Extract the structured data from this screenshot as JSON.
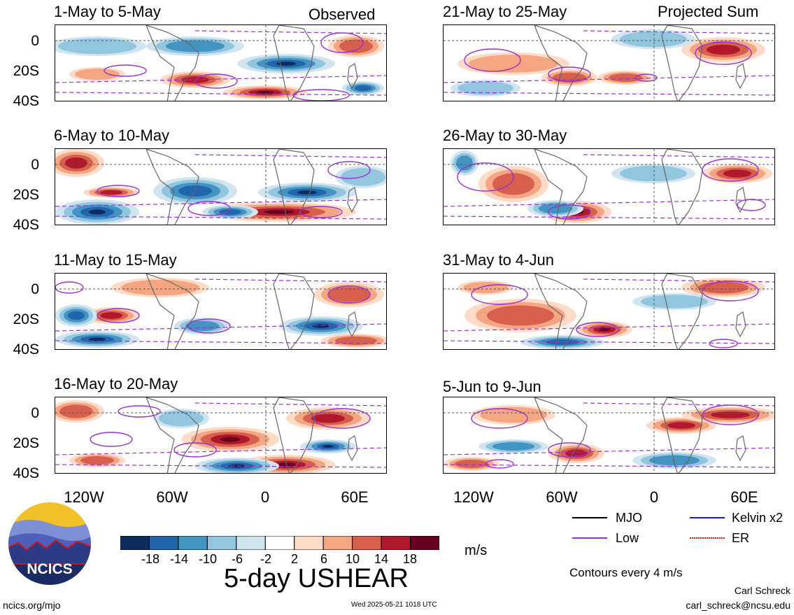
{
  "panels": [
    {
      "id": "p1",
      "title": "1-May to 5-May",
      "tag": "Observed"
    },
    {
      "id": "p2",
      "title": "6-May to 10-May",
      "tag": ""
    },
    {
      "id": "p3",
      "title": "11-May to 15-May",
      "tag": ""
    },
    {
      "id": "p4",
      "title": "16-May to 20-May",
      "tag": ""
    },
    {
      "id": "p5",
      "title": "21-May to 25-May",
      "tag": "Projected Sum"
    },
    {
      "id": "p6",
      "title": "26-May to 30-May",
      "tag": ""
    },
    {
      "id": "p7",
      "title": "31-May to 4-Jun",
      "tag": ""
    },
    {
      "id": "p8",
      "title": "5-Jun to 9-Jun",
      "tag": ""
    }
  ],
  "lat_labels": [
    "0",
    "20S",
    "40S"
  ],
  "lon_labels": [
    "120W",
    "60W",
    "0",
    "60E"
  ],
  "colorbar": {
    "labels": [
      "-18",
      "-14",
      "-10",
      "-6",
      "-2",
      "2",
      "6",
      "10",
      "14",
      "18"
    ],
    "colors": [
      "#0c2d5e",
      "#2166ac",
      "#4393c3",
      "#92c5de",
      "#d1e5f0",
      "#ffffff",
      "#fddbc7",
      "#f4a582",
      "#d6604d",
      "#b2182b",
      "#67001f"
    ],
    "unit": "m/s",
    "title": "5-day USHEAR"
  },
  "legend": {
    "items": [
      {
        "label": "MJO",
        "color": "#000000"
      },
      {
        "label": "Kelvin x2",
        "color": "#1a1acc"
      },
      {
        "label": "Low",
        "color": "#9932cc"
      },
      {
        "label": "ER",
        "color": "#cc1a1a"
      }
    ],
    "contours_note": "Contours every 4 m/s"
  },
  "logo_text": "NCICS",
  "footer": {
    "left": "ncics.org/mjo",
    "center": "Wed 2025-05-21 1018 UTC",
    "author": "Carl Schreck",
    "email": "carl_schreck@ncsu.edu"
  }
}
